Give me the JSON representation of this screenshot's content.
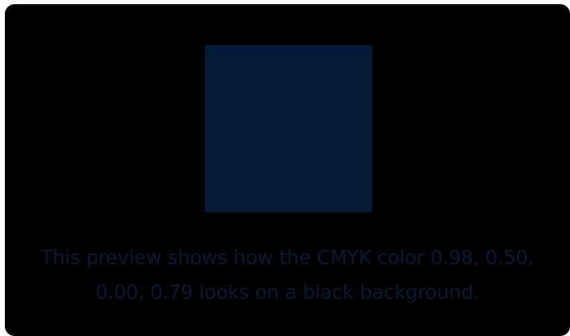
{
  "preview": {
    "background_color": "#000000",
    "swatch_color": "#051b35",
    "text_color": "#051b35",
    "caption": "This preview shows how the CMYK color 0.98, 0.50, 0.00, 0.79 looks on a black background."
  }
}
